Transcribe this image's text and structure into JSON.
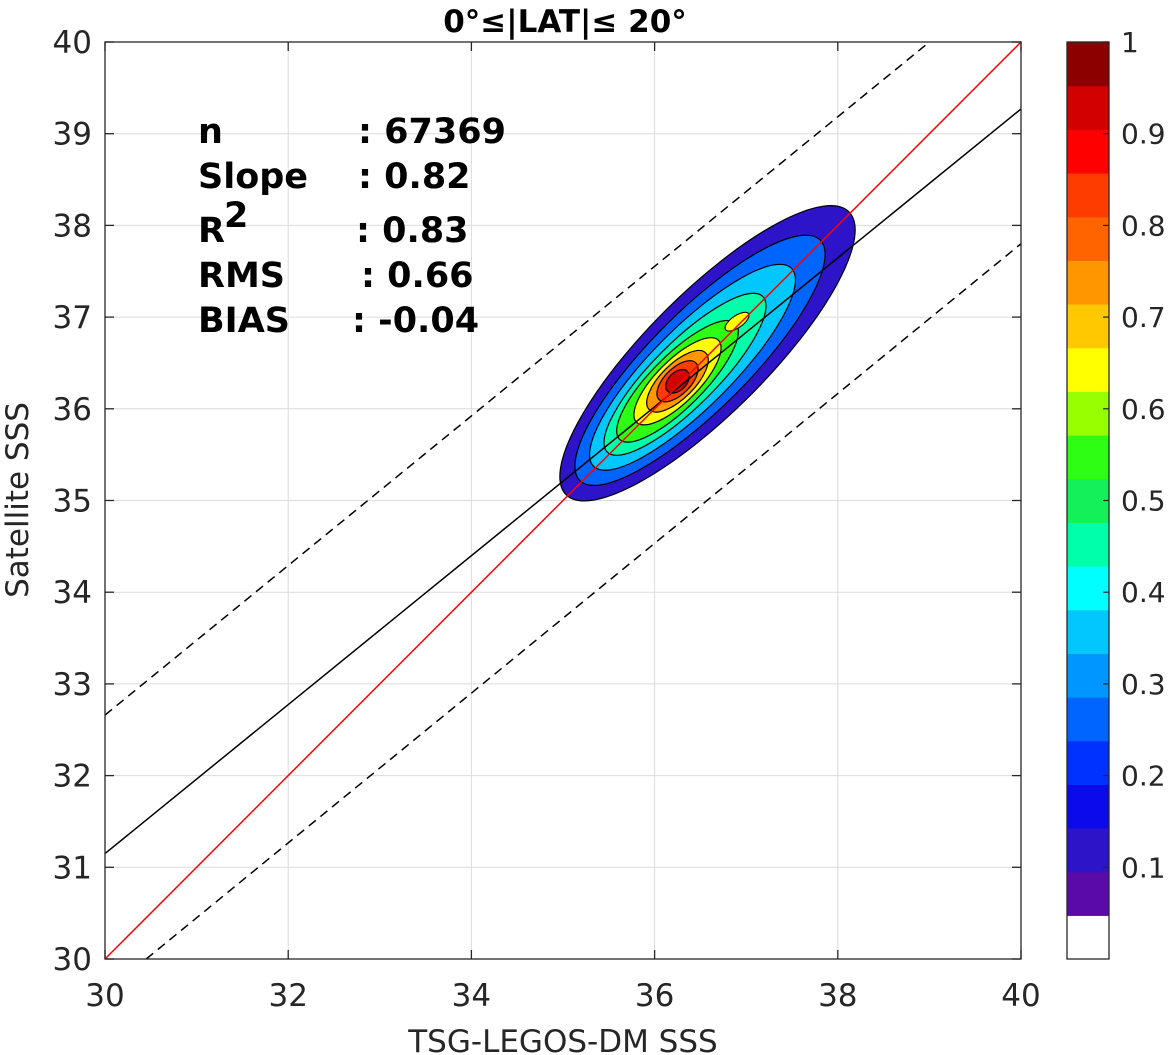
{
  "chart_data": {
    "type": "contour",
    "title": "0°≤|LAT|≤ 20°",
    "xlabel": "TSG-LEGOS-DM SSS",
    "ylabel": "Satellite SSS",
    "xlim": [
      30,
      40
    ],
    "ylim": [
      30,
      40
    ],
    "xticks": [
      "30",
      "32",
      "34",
      "36",
      "38",
      "40"
    ],
    "yticks": [
      "30",
      "31",
      "32",
      "33",
      "34",
      "35",
      "36",
      "37",
      "38",
      "39",
      "40"
    ],
    "grid": true,
    "stats": [
      {
        "label": "n",
        "sep": ":",
        "value": "67369"
      },
      {
        "label": "Slope",
        "sep": ":",
        "value": "0.82"
      },
      {
        "label": "R",
        "sup": "2",
        "sep": ":",
        "value": "0.83"
      },
      {
        "label": "RMS",
        "sep": ":",
        "value": "0.66"
      },
      {
        "label": "BIAS",
        "sep": ":",
        "value": "-0.04"
      }
    ],
    "lines": {
      "identity": {
        "x": [
          30,
          40
        ],
        "y": [
          30,
          40
        ],
        "color": "#ff0000"
      },
      "regression": {
        "x": [
          30,
          40
        ],
        "y": [
          31.15,
          39.27
        ],
        "color": "#000000"
      },
      "upper_bound": {
        "x": [
          30,
          39
        ],
        "y": [
          32.66,
          40.0
        ],
        "style": "dashed"
      },
      "lower_bound": {
        "x": [
          30.45,
          40
        ],
        "y": [
          30.0,
          37.8
        ],
        "style": "dashed"
      }
    },
    "density_center": {
      "x": 36.25,
      "y": 36.3
    },
    "colorbar": {
      "ticks": [
        "0.1",
        "0.2",
        "0.3",
        "0.4",
        "0.5",
        "0.6",
        "0.7",
        "0.8",
        "0.9",
        "1"
      ],
      "range": [
        0,
        1
      ],
      "colors": [
        "#ffffff",
        "#5a0aa8",
        "#2d14c8",
        "#0a0aeb",
        "#0032ff",
        "#0064ff",
        "#0096ff",
        "#00c8ff",
        "#00ffff",
        "#00ffaa",
        "#14f05a",
        "#2dff14",
        "#96ff00",
        "#ffff00",
        "#ffc800",
        "#ff9600",
        "#ff6400",
        "#ff3c00",
        "#ff0000",
        "#d20000",
        "#8c0000"
      ]
    }
  }
}
